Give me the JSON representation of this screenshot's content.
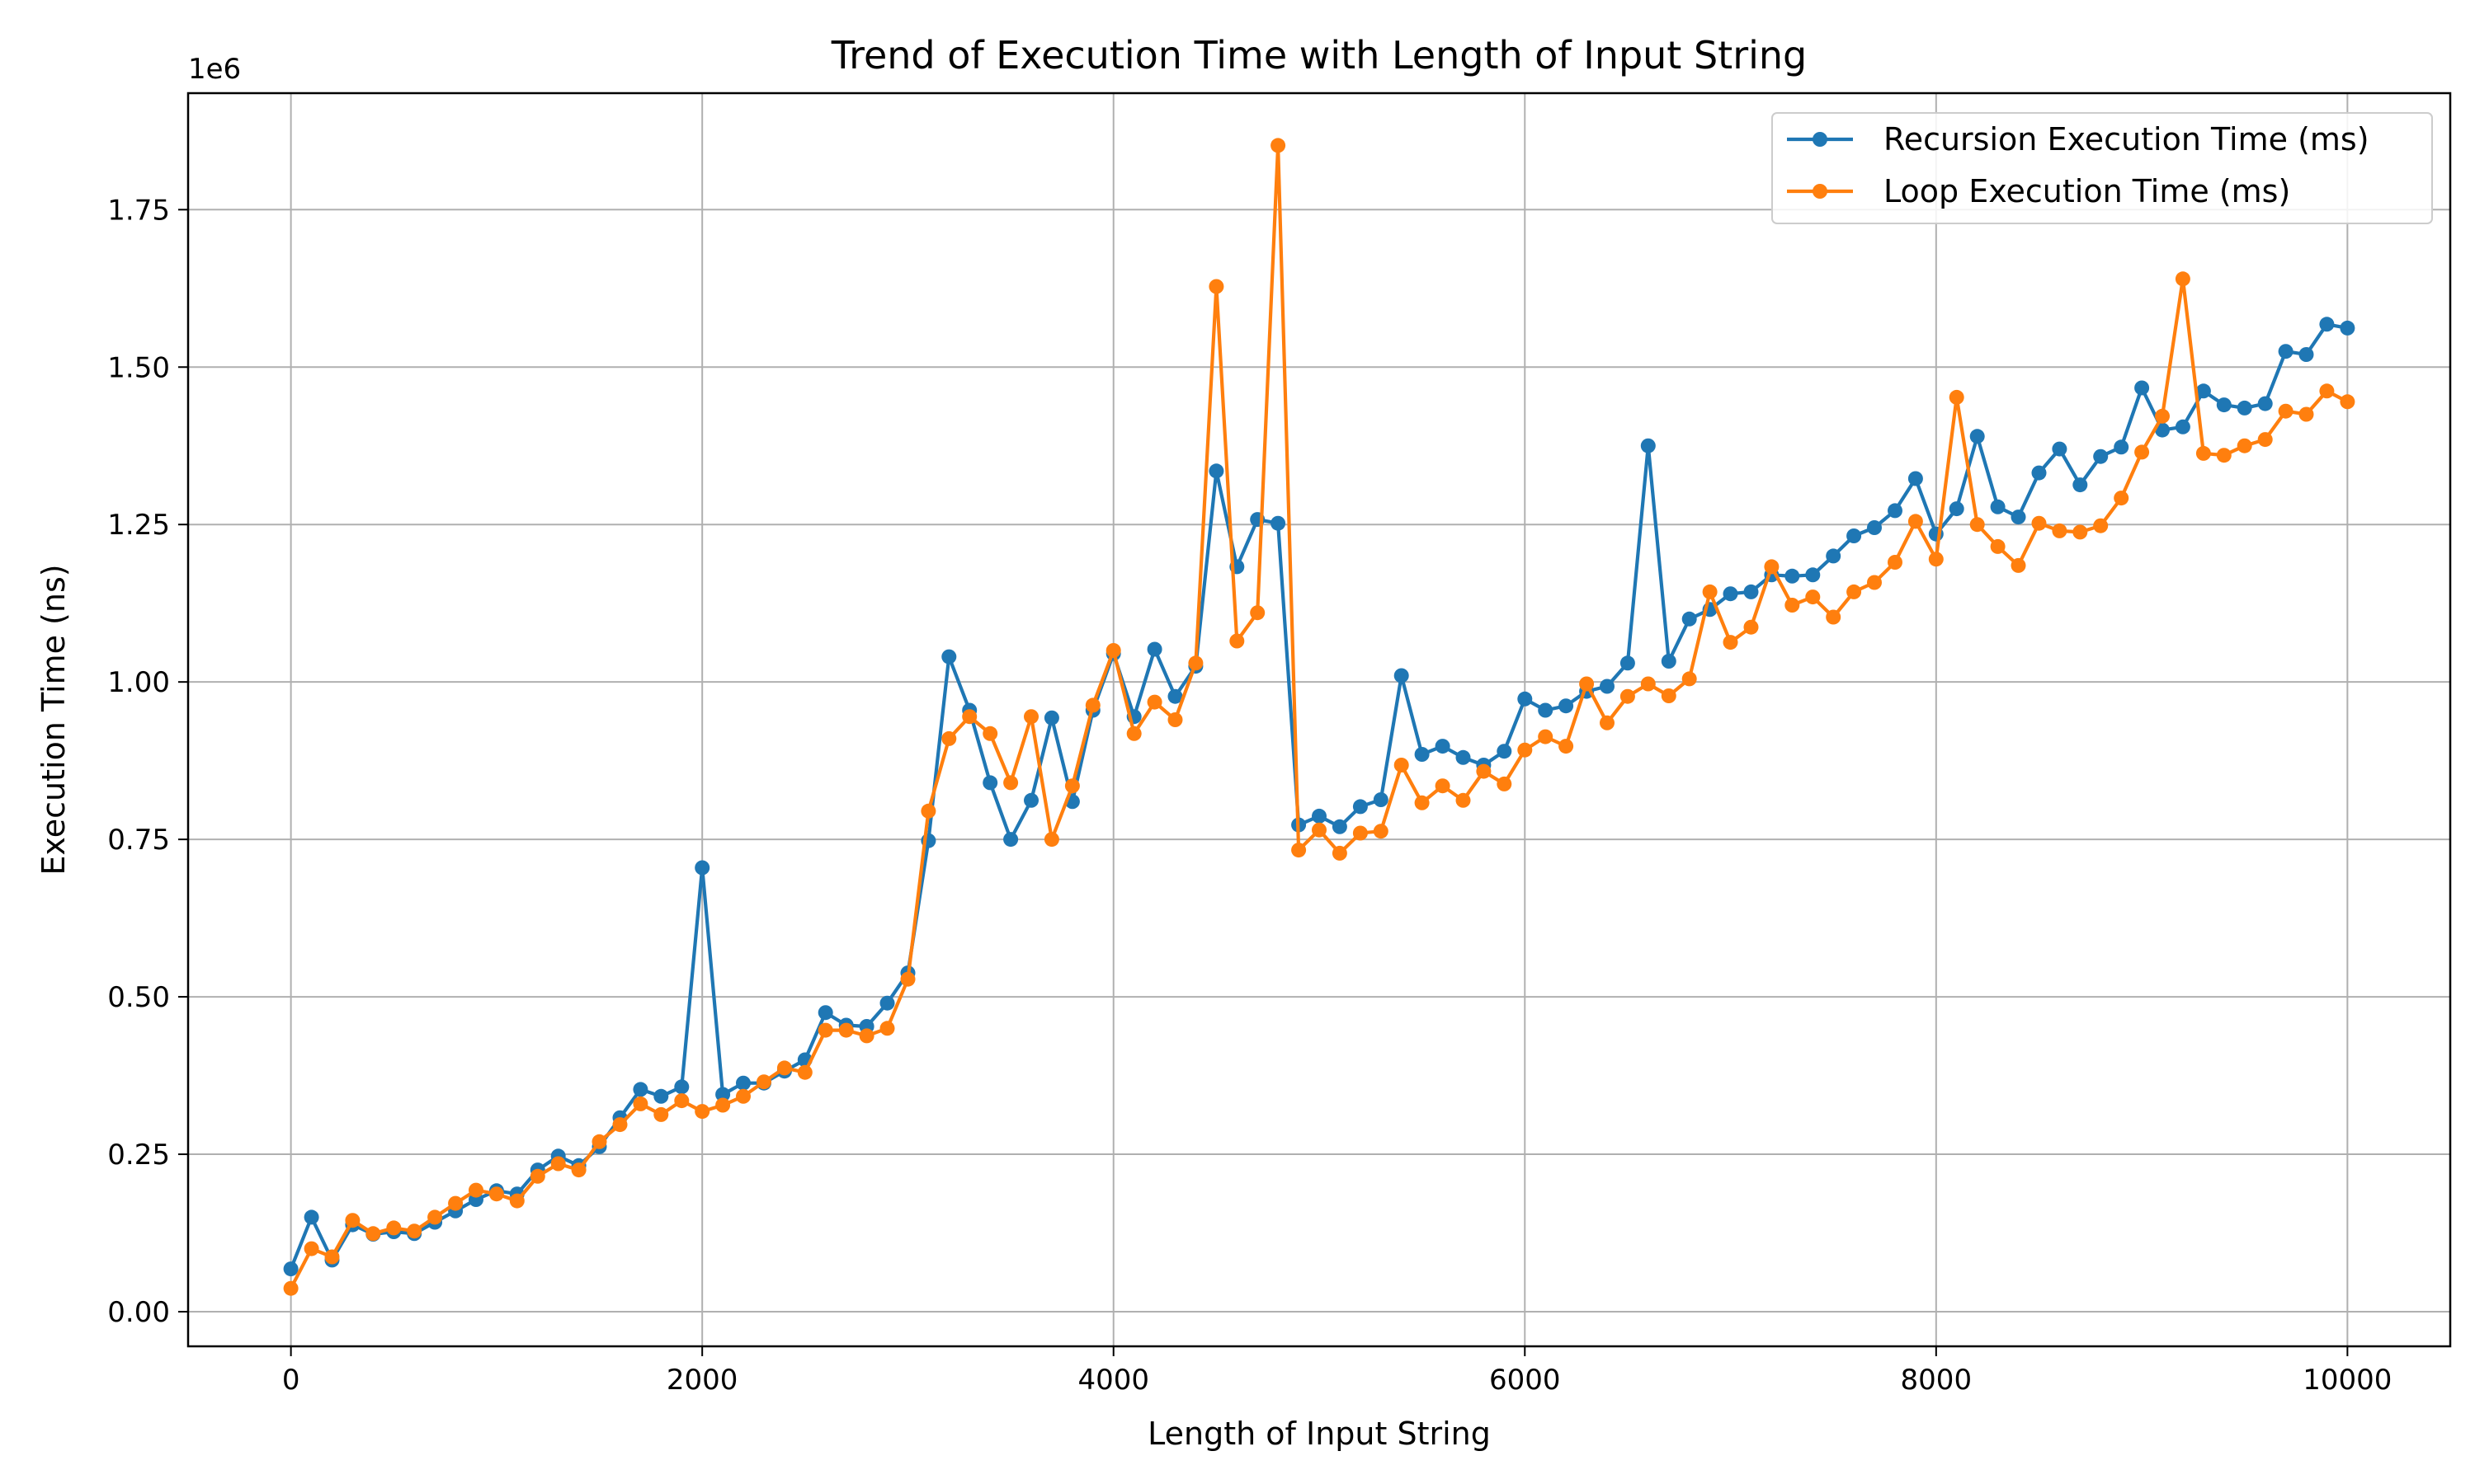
{
  "chart_data": {
    "type": "line",
    "title": "Trend of Execution Time with Length of Input String",
    "xlabel": "Length of Input String",
    "ylabel": "Execution Time (ns)",
    "y_offset_label": "1e6",
    "xlim": [
      -500,
      10500
    ],
    "ylim": [
      -55000,
      1935000
    ],
    "xticks": [
      0,
      2000,
      4000,
      6000,
      8000,
      10000
    ],
    "xtick_labels": [
      "0",
      "2000",
      "4000",
      "6000",
      "8000",
      "10000"
    ],
    "yticks": [
      0,
      250000,
      500000,
      750000,
      1000000,
      1250000,
      1500000,
      1750000
    ],
    "ytick_labels": [
      "0.00",
      "0.25",
      "0.50",
      "0.75",
      "1.00",
      "1.25",
      "1.50",
      "1.75"
    ],
    "grid": true,
    "legend_position": "top-right",
    "x": [
      0,
      100,
      200,
      300,
      400,
      500,
      600,
      700,
      800,
      900,
      1000,
      1100,
      1200,
      1300,
      1400,
      1500,
      1600,
      1700,
      1800,
      1900,
      2000,
      2100,
      2200,
      2300,
      2400,
      2500,
      2600,
      2700,
      2800,
      2900,
      3000,
      3100,
      3200,
      3300,
      3400,
      3500,
      3600,
      3700,
      3800,
      3900,
      4000,
      4100,
      4200,
      4300,
      4400,
      4500,
      4600,
      4700,
      4800,
      4900,
      5000,
      5100,
      5200,
      5300,
      5400,
      5500,
      5600,
      5700,
      5800,
      5900,
      6000,
      6100,
      6200,
      6300,
      6400,
      6500,
      6600,
      6700,
      6800,
      6900,
      7000,
      7100,
      7200,
      7300,
      7400,
      7500,
      7600,
      7700,
      7800,
      7900,
      8000,
      8100,
      8200,
      8300,
      8400,
      8500,
      8600,
      8700,
      8800,
      8900,
      9000,
      9100,
      9200,
      9300,
      9400,
      9500,
      9600,
      9700,
      9800,
      9900,
      10000
    ],
    "series": [
      {
        "name": "Recursion Execution Time (ms)",
        "color": "#1f77b4",
        "values": [
          68000,
          150000,
          82000,
          138000,
          123000,
          127000,
          124000,
          142000,
          160000,
          178000,
          192000,
          187000,
          225000,
          247000,
          232000,
          262000,
          308000,
          353000,
          342000,
          357000,
          705000,
          345000,
          363000,
          363000,
          382000,
          400000,
          475000,
          455000,
          453000,
          490000,
          538000,
          748000,
          1040000,
          955000,
          840000,
          750000,
          812000,
          943000,
          810000,
          955000,
          1045000,
          945000,
          1052000,
          977000,
          1025000,
          1335000,
          1183000,
          1258000,
          1252000,
          773000,
          787000,
          770000,
          802000,
          813000,
          1010000,
          885000,
          898000,
          880000,
          868000,
          890000,
          973000,
          955000,
          962000,
          985000,
          993000,
          1030000,
          1375000,
          1033000,
          1100000,
          1115000,
          1140000,
          1143000,
          1170000,
          1168000,
          1170000,
          1200000,
          1232000,
          1245000,
          1272000,
          1323000,
          1235000,
          1275000,
          1390000,
          1278000,
          1262000,
          1332000,
          1370000,
          1313000,
          1358000,
          1373000,
          1467000,
          1400000,
          1405000,
          1462000,
          1440000,
          1435000,
          1442000,
          1525000,
          1520000,
          1568000,
          1562000
        ]
      },
      {
        "name": "Loop Execution Time (ms)",
        "color": "#ff7f0e",
        "values": [
          37000,
          100000,
          87000,
          145000,
          124000,
          133000,
          128000,
          150000,
          172000,
          193000,
          187000,
          176000,
          215000,
          235000,
          225000,
          270000,
          297000,
          330000,
          313000,
          335000,
          318000,
          328000,
          342000,
          365000,
          387000,
          380000,
          447000,
          447000,
          438000,
          450000,
          528000,
          795000,
          910000,
          945000,
          918000,
          840000,
          945000,
          750000,
          835000,
          963000,
          1050000,
          918000,
          968000,
          940000,
          1030000,
          1628000,
          1065000,
          1110000,
          1852000,
          733000,
          765000,
          728000,
          760000,
          763000,
          868000,
          808000,
          835000,
          812000,
          858000,
          838000,
          892000,
          913000,
          898000,
          997000,
          935000,
          977000,
          997000,
          978000,
          1005000,
          1143000,
          1063000,
          1087000,
          1183000,
          1122000,
          1135000,
          1103000,
          1143000,
          1158000,
          1190000,
          1255000,
          1195000,
          1452000,
          1250000,
          1215000,
          1185000,
          1252000,
          1240000,
          1238000,
          1248000,
          1292000,
          1365000,
          1422000,
          1640000,
          1363000,
          1360000,
          1375000,
          1385000,
          1430000,
          1425000,
          1462000,
          1445000
        ]
      }
    ]
  }
}
